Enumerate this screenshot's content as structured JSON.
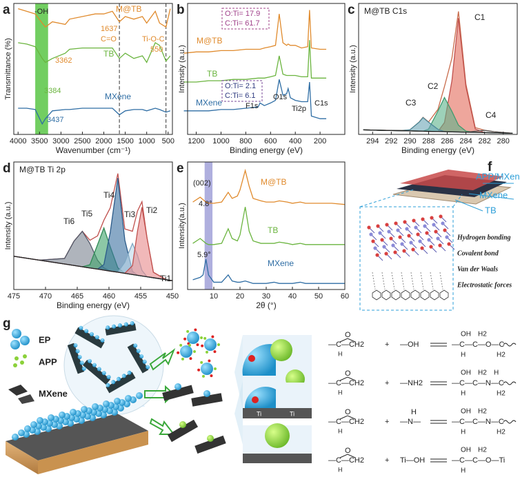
{
  "chart_data": [
    {
      "type": "line",
      "panel": "a",
      "ylabel": "Transmittance (%)",
      "xlabel": "Wavenumber (cm⁻¹)",
      "x": [
        4000,
        3800,
        3600,
        3437,
        3362,
        3200,
        2900,
        2800,
        2500,
        2200,
        2000,
        1800,
        1637,
        1500,
        1300,
        1100,
        1000,
        800,
        700,
        550,
        450
      ],
      "series": [
        {
          "name": "M@TB",
          "color": "#e08a2c",
          "values": [
            96,
            94,
            92,
            85,
            82,
            86,
            84,
            88,
            90,
            92,
            92,
            94,
            86,
            90,
            88,
            90,
            85,
            94,
            85,
            82,
            96
          ]
        },
        {
          "name": "TB",
          "color": "#6ab43e",
          "values": [
            70,
            69,
            67,
            58,
            55,
            58,
            62,
            65,
            66,
            66,
            66,
            66,
            58,
            62,
            58,
            60,
            55,
            70,
            68,
            56,
            60
          ]
        },
        {
          "name": "MXene",
          "color": "#2e6da4",
          "values": [
            20,
            20,
            19,
            8,
            12,
            18,
            19,
            19,
            20,
            20,
            20,
            20,
            15,
            18,
            19,
            19,
            18,
            20,
            19,
            17,
            18
          ]
        }
      ],
      "xlim": [
        4100,
        400
      ],
      "ylim": [
        0,
        100
      ],
      "xticks": [
        4000,
        3500,
        3000,
        2500,
        2000,
        1500,
        1000,
        500
      ],
      "highlight": [
        3300,
        3600
      ],
      "highlight_color": "#4fc23a",
      "vlines": [
        1637,
        550
      ],
      "annotations": [
        "-OH",
        "3362",
        "3384",
        "3437",
        "1637",
        "C=O",
        "Ti-O-C",
        "550"
      ]
    },
    {
      "type": "line",
      "panel": "b",
      "ylabel": "Intensity (a.u.)",
      "xlabel": "Binding energy (eV)",
      "x": [
        1300,
        1200,
        1100,
        1000,
        900,
        800,
        700,
        685,
        650,
        600,
        560,
        530,
        500,
        470,
        458,
        440,
        400,
        350,
        300,
        285,
        270,
        200,
        150
      ],
      "series": [
        {
          "name": "M@TB",
          "color": "#e08a2c",
          "values": [
            62,
            63,
            63,
            64,
            64,
            65,
            65,
            65,
            66,
            67,
            68,
            92,
            70,
            68,
            69,
            68,
            68,
            66,
            67,
            95,
            66,
            65,
            65
          ]
        },
        {
          "name": "TB",
          "color": "#6ab43e",
          "values": [
            40,
            40,
            41,
            41,
            42,
            42,
            43,
            43,
            43,
            44,
            45,
            60,
            46,
            45,
            45,
            45,
            45,
            44,
            44,
            72,
            43,
            43,
            43
          ]
        },
        {
          "name": "MXene",
          "color": "#2e6da4",
          "values": [
            18,
            18,
            18,
            19,
            19,
            20,
            21,
            24,
            22,
            24,
            26,
            42,
            30,
            31,
            35,
            28,
            26,
            25,
            25,
            40,
            14,
            12,
            12
          ]
        }
      ],
      "xlim": [
        1270,
        0
      ],
      "ylim": [
        0,
        100
      ],
      "xticks": [
        1200,
        1000,
        800,
        600,
        400,
        200
      ],
      "annotations": [
        "O:Ti= 17.9",
        "C:Ti= 61.7",
        "O:Ti= 2.1",
        "C:Ti= 6.1",
        "F1s",
        "O1s",
        "Ti2p",
        "C1s"
      ]
    },
    {
      "type": "line",
      "panel": "c",
      "title": "M@TB C1s",
      "ylabel": "Intensity (a.u.)",
      "xlabel": "Binding energy (eV)",
      "x": [
        295,
        293,
        291,
        290,
        289,
        288.6,
        288,
        287,
        286.3,
        285.5,
        284.8,
        284,
        283,
        282,
        281,
        279
      ],
      "series": [
        {
          "color": "#c86a4a",
          "values": [
            4,
            3.6,
            3.5,
            4,
            11,
            15,
            11,
            22,
            42,
            67,
            108,
            44,
            6,
            3.6,
            2.4,
            1
          ]
        },
        {
          "name": "C1",
          "color": "#c0504d",
          "fill": "#e36a5a",
          "values": [
            4,
            3.6,
            3.3,
            3.1,
            2.9,
            2.8,
            2.7,
            2.5,
            10.4,
            47.2,
            102.1,
            41.9,
            4.8,
            1.6,
            1.4,
            1
          ]
        },
        {
          "name": "C2",
          "color": "#3f9a6e",
          "fill": "#5bb38a",
          "values": [
            4,
            3.6,
            3.3,
            3.1,
            2.9,
            2.8,
            4.7,
            20.5,
            32.4,
            20.2,
            8.1,
            2.9,
            1.8,
            1.6,
            1.4,
            1
          ]
        },
        {
          "name": "C3",
          "color": "#4d8a9a",
          "fill": "#6aa5b5",
          "values": [
            4,
            3.6,
            3.3,
            4.1,
            10.9,
            14.8,
            10.7,
            4.5,
            2.4,
            2.2,
            2.1,
            1.9,
            1.8,
            1.6,
            1.4,
            1
          ]
        },
        {
          "name": "C4",
          "color": "#555555",
          "values": [
            4,
            3.6,
            3.3,
            3.1,
            2.9,
            2.8,
            2.7,
            2.5,
            2.4,
            2.2,
            2.1,
            1.9,
            2.8,
            3.6,
            2.4,
            1
          ]
        },
        {
          "color": "#222222",
          "values": [
            4,
            3.6,
            3.3,
            3.1,
            2.9,
            2.8,
            2.7,
            2.5,
            2.4,
            2.2,
            2.1,
            1.9,
            1.8,
            1.6,
            1.4,
            1
          ]
        }
      ],
      "xlim": [
        295.5,
        278.5
      ],
      "ylim": [
        0,
        115
      ],
      "xticks": [
        294,
        292,
        290,
        288,
        286,
        284,
        282,
        280
      ]
    },
    {
      "type": "line",
      "panel": "d",
      "title": "M@TB Ti 2p",
      "ylabel": "Intensity (a.u.)",
      "xlabel": "Binding energy (eV)",
      "x": [
        475,
        471,
        467,
        465.5,
        464.2,
        463,
        461.8,
        460.8,
        459.8,
        458.6,
        457.5,
        456.3,
        455.5,
        454.8,
        454,
        453,
        451,
        450
      ],
      "series": [
        {
          "color": "#c0504d",
          "values": [
            30,
            26.5,
            28,
            43.7,
            52.5,
            44.4,
            48.4,
            62.5,
            73.6,
            104.6,
            54.6,
            52.5,
            70.8,
            79.2,
            46.5,
            15.6,
            8.9,
            8
          ]
        },
        {
          "name": "Ti6",
          "color": "#505868",
          "fill": "#7a8290",
          "values": [
            30,
            26.5,
            28,
            43.7,
            52.5,
            41.4,
            26.4,
            19.5,
            16.6,
            15.6,
            14.6,
            13.5,
            12.8,
            12.2,
            11.5,
            10.6,
            8.9,
            8
          ]
        },
        {
          "name": "Ti5",
          "color": "#2f8a55",
          "fill": "#3fa36a",
          "values": [
            30,
            26.5,
            23,
            21.7,
            20.5,
            22.4,
            40.4,
            55.5,
            38.6,
            19.6,
            14.6,
            13.5,
            12.8,
            12.2,
            11.5,
            10.6,
            8.9,
            8
          ]
        },
        {
          "name": "Ti4",
          "color": "#2b5a88",
          "fill": "#3b6fa0",
          "values": [
            30,
            26.5,
            23,
            21.7,
            20.5,
            19.4,
            18.4,
            22.5,
            51.6,
            100.6,
            44.6,
            16.5,
            12.8,
            12.2,
            11.5,
            10.6,
            8.9,
            8
          ]
        },
        {
          "name": "Ti3",
          "color": "#7fa8c4",
          "fill": "#bcd8ea",
          "values": [
            30,
            26.5,
            23,
            21.7,
            20.5,
            19.4,
            18.4,
            17.5,
            16.6,
            15.6,
            24.6,
            41.5,
            30.8,
            17.2,
            11.5,
            10.6,
            8.9,
            8
          ]
        },
        {
          "name": "Ti2",
          "color": "#c0504d",
          "fill": "#e8888a",
          "values": [
            30,
            26.5,
            23,
            21.7,
            20.5,
            19.4,
            18.4,
            17.5,
            16.6,
            15.6,
            14.6,
            21.5,
            52.8,
            74.2,
            46.5,
            15.6,
            8.9,
            8
          ]
        },
        {
          "name": "Ti1",
          "color": "#222222",
          "values": [
            30,
            26.5,
            23,
            21.7,
            20.5,
            19.4,
            18.4,
            17.5,
            16.6,
            15.6,
            14.6,
            13.5,
            12.8,
            12.2,
            11.5,
            10.6,
            8.9,
            8
          ]
        }
      ],
      "xlim": [
        475,
        450
      ],
      "ylim": [
        0,
        115
      ],
      "xticks": [
        475,
        470,
        465,
        460,
        455,
        450
      ]
    },
    {
      "type": "line",
      "panel": "e",
      "ylabel": "Intensity(a.u.)",
      "xlabel": "2θ (°)",
      "x": [
        2,
        4.8,
        5.9,
        7,
        8,
        10,
        13,
        15.5,
        17,
        19,
        20,
        22,
        23.5,
        25,
        28,
        30,
        33,
        35,
        38,
        40,
        43,
        45,
        50,
        55,
        60
      ],
      "series": [
        {
          "name": "M@TB",
          "color": "#e08a2c",
          "values": [
            72,
            76,
            74,
            72,
            71,
            71,
            72,
            80,
            75,
            77,
            82,
            98,
            85,
            75,
            73,
            72,
            72,
            73,
            72,
            71,
            72,
            71,
            71,
            71,
            70
          ]
        },
        {
          "name": "TB",
          "color": "#6ab43e",
          "values": [
            38,
            42,
            40,
            38,
            37,
            37,
            38,
            50,
            42,
            40,
            45,
            68,
            48,
            40,
            38,
            38,
            38,
            39,
            38,
            37,
            38,
            37,
            37,
            37,
            37
          ]
        },
        {
          "name": "MXene",
          "color": "#2e6da4",
          "values": [
            8,
            10,
            12,
            25,
            12,
            6,
            6,
            12,
            7,
            6,
            6,
            7,
            6,
            5,
            5,
            5,
            6,
            5,
            5,
            5,
            6,
            5,
            5,
            5,
            5
          ]
        }
      ],
      "xlim": [
        0,
        60
      ],
      "ylim": [
        0,
        105
      ],
      "xticks": [
        10,
        20,
        30,
        40,
        50,
        60
      ],
      "highlight": [
        6.5,
        9.5
      ],
      "highlight_color": "#9b9bd6",
      "annotations": [
        "(002)",
        "4.8°",
        "5.9°"
      ]
    }
  ],
  "schematic": {
    "f": {
      "panel": "f",
      "labels": [
        "APP/MXene",
        "MXene",
        "TB"
      ],
      "interactions": [
        "Hydrogen bonding",
        "Covalent bond",
        "Van der Waals",
        "Electrostatic forces"
      ]
    },
    "g": {
      "panel": "g",
      "legend": [
        "EP",
        "APP",
        "MXene"
      ],
      "surface_labels": [
        "Ti",
        "Ti"
      ],
      "epoxide": {
        "top": "O",
        "main": "—C—CH2",
        "bottom": "H"
      },
      "plus": "+",
      "reactions": [
        {
          "reagent_top": "",
          "reagent": "—OH",
          "top": [
            "OH",
            "H2"
          ],
          "main": "—C—C—O—C",
          "bottom": [
            "H",
            "H2"
          ]
        },
        {
          "reagent_top": "",
          "reagent": "—NH2",
          "top": [
            "OH",
            "H2",
            "H"
          ],
          "main": "—C—C—N—C",
          "bottom": [
            "H",
            "H2"
          ]
        },
        {
          "reagent_top": "H",
          "reagent": "—N—",
          "top": [
            "OH",
            "H2"
          ],
          "main": "—C—C—N—C",
          "bottom": [
            "H",
            "H2"
          ]
        },
        {
          "reagent_top": "",
          "reagent": "Ti—OH",
          "top": [
            "OH",
            "H2"
          ],
          "main": "—C—C—O—Ti",
          "bottom": [
            "H"
          ]
        }
      ]
    }
  }
}
